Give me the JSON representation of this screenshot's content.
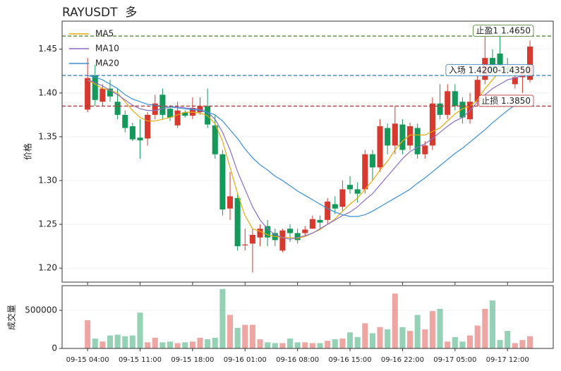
{
  "chart_data": [
    {
      "type": "candlestick",
      "title": "RAYUSDT  多",
      "ylabel": "价格",
      "x": [
        "09-15 04:00",
        null,
        null,
        null,
        null,
        null,
        null,
        "09-15 11:00",
        null,
        null,
        null,
        null,
        null,
        null,
        "09-15 18:00",
        null,
        null,
        null,
        null,
        null,
        null,
        "09-16 01:00",
        null,
        null,
        null,
        null,
        null,
        null,
        "09-16 08:00",
        null,
        null,
        null,
        null,
        null,
        null,
        "09-16 15:00",
        null,
        null,
        null,
        null,
        null,
        null,
        "09-16 22:00",
        null,
        null,
        null,
        null,
        null,
        null,
        "09-17 05:00",
        null,
        null,
        null,
        null,
        null,
        null,
        "09-17 12:00",
        null,
        null,
        null
      ],
      "open": [
        1.381,
        1.42,
        1.39,
        1.405,
        1.39,
        1.375,
        1.362,
        1.349,
        1.348,
        1.375,
        1.398,
        1.382,
        1.363,
        1.378,
        1.374,
        1.378,
        1.385,
        1.363,
        1.33,
        1.268,
        1.28,
        1.226,
        1.228,
        1.235,
        1.248,
        1.24,
        1.22,
        1.245,
        1.24,
        1.24,
        1.245,
        1.255,
        1.255,
        1.273,
        1.27,
        1.295,
        1.29,
        1.29,
        1.33,
        1.315,
        1.36,
        1.34,
        1.364,
        1.34,
        1.36,
        1.33,
        1.34,
        1.388,
        1.375,
        1.402,
        1.39,
        1.37,
        1.39,
        1.415,
        1.44,
        1.445,
        1.43,
        1.41,
        1.418,
        1.415
      ],
      "high": [
        1.44,
        1.432,
        1.41,
        1.415,
        1.405,
        1.38,
        1.366,
        1.37,
        1.378,
        1.398,
        1.405,
        1.386,
        1.39,
        1.38,
        1.395,
        1.395,
        1.405,
        1.375,
        1.335,
        1.31,
        1.285,
        1.245,
        1.245,
        1.25,
        1.255,
        1.245,
        1.245,
        1.25,
        1.245,
        1.248,
        1.26,
        1.26,
        1.28,
        1.282,
        1.3,
        1.305,
        1.298,
        1.335,
        1.335,
        1.37,
        1.365,
        1.385,
        1.37,
        1.366,
        1.365,
        1.345,
        1.395,
        1.41,
        1.41,
        1.41,
        1.395,
        1.4,
        1.42,
        1.47,
        1.45,
        1.47,
        1.44,
        1.43,
        1.43,
        1.46
      ],
      "low": [
        1.378,
        1.385,
        1.385,
        1.39,
        1.37,
        1.355,
        1.345,
        1.325,
        1.34,
        1.37,
        1.37,
        1.368,
        1.36,
        1.372,
        1.37,
        1.375,
        1.36,
        1.325,
        1.26,
        1.255,
        1.22,
        1.22,
        1.195,
        1.225,
        1.225,
        1.225,
        1.218,
        1.23,
        1.228,
        1.237,
        1.245,
        1.245,
        1.25,
        1.262,
        1.265,
        1.285,
        1.275,
        1.285,
        1.3,
        1.31,
        1.33,
        1.33,
        1.33,
        1.335,
        1.325,
        1.325,
        1.335,
        1.37,
        1.37,
        1.38,
        1.365,
        1.365,
        1.385,
        1.41,
        1.42,
        1.425,
        1.42,
        1.405,
        1.4,
        1.412
      ],
      "close": [
        1.417,
        1.392,
        1.405,
        1.396,
        1.375,
        1.36,
        1.347,
        1.346,
        1.375,
        1.388,
        1.375,
        1.372,
        1.38,
        1.374,
        1.383,
        1.385,
        1.364,
        1.33,
        1.267,
        1.282,
        1.225,
        1.227,
        1.238,
        1.245,
        1.235,
        1.232,
        1.243,
        1.24,
        1.232,
        1.244,
        1.256,
        1.252,
        1.276,
        1.268,
        1.29,
        1.29,
        1.285,
        1.33,
        1.315,
        1.362,
        1.34,
        1.365,
        1.335,
        1.362,
        1.33,
        1.34,
        1.388,
        1.375,
        1.402,
        1.385,
        1.372,
        1.39,
        1.415,
        1.44,
        1.425,
        1.43,
        1.425,
        1.418,
        1.424,
        1.453
      ],
      "up_color": "#d63a2f",
      "down_color": "#14995a",
      "series": [
        {
          "name": "MA5",
          "color": "#e8a90c",
          "values": [
            1.415,
            1.41,
            1.405,
            1.403,
            1.4,
            1.39,
            1.38,
            1.372,
            1.368,
            1.368,
            1.37,
            1.372,
            1.375,
            1.378,
            1.378,
            1.377,
            1.374,
            1.365,
            1.345,
            1.315,
            1.285,
            1.26,
            1.245,
            1.242,
            1.238,
            1.236,
            1.235,
            1.235,
            1.234,
            1.236,
            1.24,
            1.244,
            1.25,
            1.256,
            1.265,
            1.273,
            1.28,
            1.29,
            1.3,
            1.312,
            1.322,
            1.335,
            1.345,
            1.352,
            1.352,
            1.352,
            1.356,
            1.36,
            1.368,
            1.376,
            1.382,
            1.385,
            1.392,
            1.405,
            1.415,
            1.425,
            1.43,
            1.43,
            1.428,
            1.43
          ]
        },
        {
          "name": "MA10",
          "color": "#8a6fc9",
          "values": [
            1.415,
            1.412,
            1.408,
            1.403,
            1.398,
            1.392,
            1.386,
            1.382,
            1.38,
            1.38,
            1.382,
            1.384,
            1.384,
            1.383,
            1.382,
            1.381,
            1.378,
            1.37,
            1.355,
            1.335,
            1.31,
            1.29,
            1.27,
            1.255,
            1.245,
            1.238,
            1.235,
            1.233,
            1.235,
            1.237,
            1.24,
            1.245,
            1.25,
            1.255,
            1.26,
            1.264,
            1.27,
            1.278,
            1.285,
            1.295,
            1.305,
            1.315,
            1.325,
            1.333,
            1.338,
            1.342,
            1.348,
            1.355,
            1.362,
            1.368,
            1.372,
            1.38,
            1.39,
            1.398,
            1.405,
            1.41,
            1.415,
            1.417,
            1.42,
            1.423
          ]
        },
        {
          "name": "MA20",
          "color": "#3a8fd6",
          "values": [
            1.42,
            1.418,
            1.415,
            1.41,
            1.405,
            1.398,
            1.393,
            1.39,
            1.387,
            1.386,
            1.385,
            1.384,
            1.383,
            1.382,
            1.381,
            1.38,
            1.378,
            1.375,
            1.368,
            1.358,
            1.348,
            1.336,
            1.326,
            1.318,
            1.312,
            1.305,
            1.3,
            1.294,
            1.288,
            1.283,
            1.278,
            1.273,
            1.268,
            1.264,
            1.261,
            1.259,
            1.259,
            1.261,
            1.265,
            1.27,
            1.275,
            1.28,
            1.285,
            1.29,
            1.297,
            1.303,
            1.31,
            1.317,
            1.324,
            1.331,
            1.337,
            1.344,
            1.351,
            1.358,
            1.366,
            1.373,
            1.38,
            1.386,
            1.39,
            1.393
          ]
        }
      ],
      "levels": [
        {
          "label": "止盈1 1.4650",
          "value": 1.465,
          "color": "#4a7a2a"
        },
        {
          "label": "入场 1.4200-1.4350",
          "value": 1.42,
          "color": "#2f78bf"
        },
        {
          "label": "止损 1.3850",
          "value": 1.385,
          "color": "#b03a3a"
        }
      ],
      "ylim": [
        1.184,
        1.482
      ],
      "yticks": [
        {
          "value": 1.2,
          "label": "1.20"
        },
        1.25,
        {
          "value": 1.3,
          "label": "1.30"
        },
        1.35,
        {
          "value": 1.4,
          "label": "1.40"
        },
        1.45
      ],
      "grid": true,
      "legend": "upper left"
    },
    {
      "type": "volume",
      "ylabel": "成交量",
      "values": [
        370000,
        130000,
        90000,
        170000,
        180000,
        160000,
        170000,
        470000,
        80000,
        140000,
        80000,
        90000,
        70000,
        80000,
        90000,
        140000,
        120000,
        140000,
        780000,
        440000,
        270000,
        310000,
        310000,
        120000,
        80000,
        70000,
        70000,
        130000,
        80000,
        80000,
        70000,
        70000,
        100000,
        120000,
        130000,
        210000,
        150000,
        330000,
        200000,
        280000,
        250000,
        720000,
        280000,
        230000,
        440000,
        250000,
        490000,
        520000,
        90000,
        150000,
        90000,
        170000,
        300000,
        520000,
        630000,
        110000,
        230000,
        70000,
        110000,
        160000
      ],
      "ylim": [
        0,
        824000
      ],
      "yticks": [
        0,
        500000
      ],
      "grid": true
    }
  ]
}
